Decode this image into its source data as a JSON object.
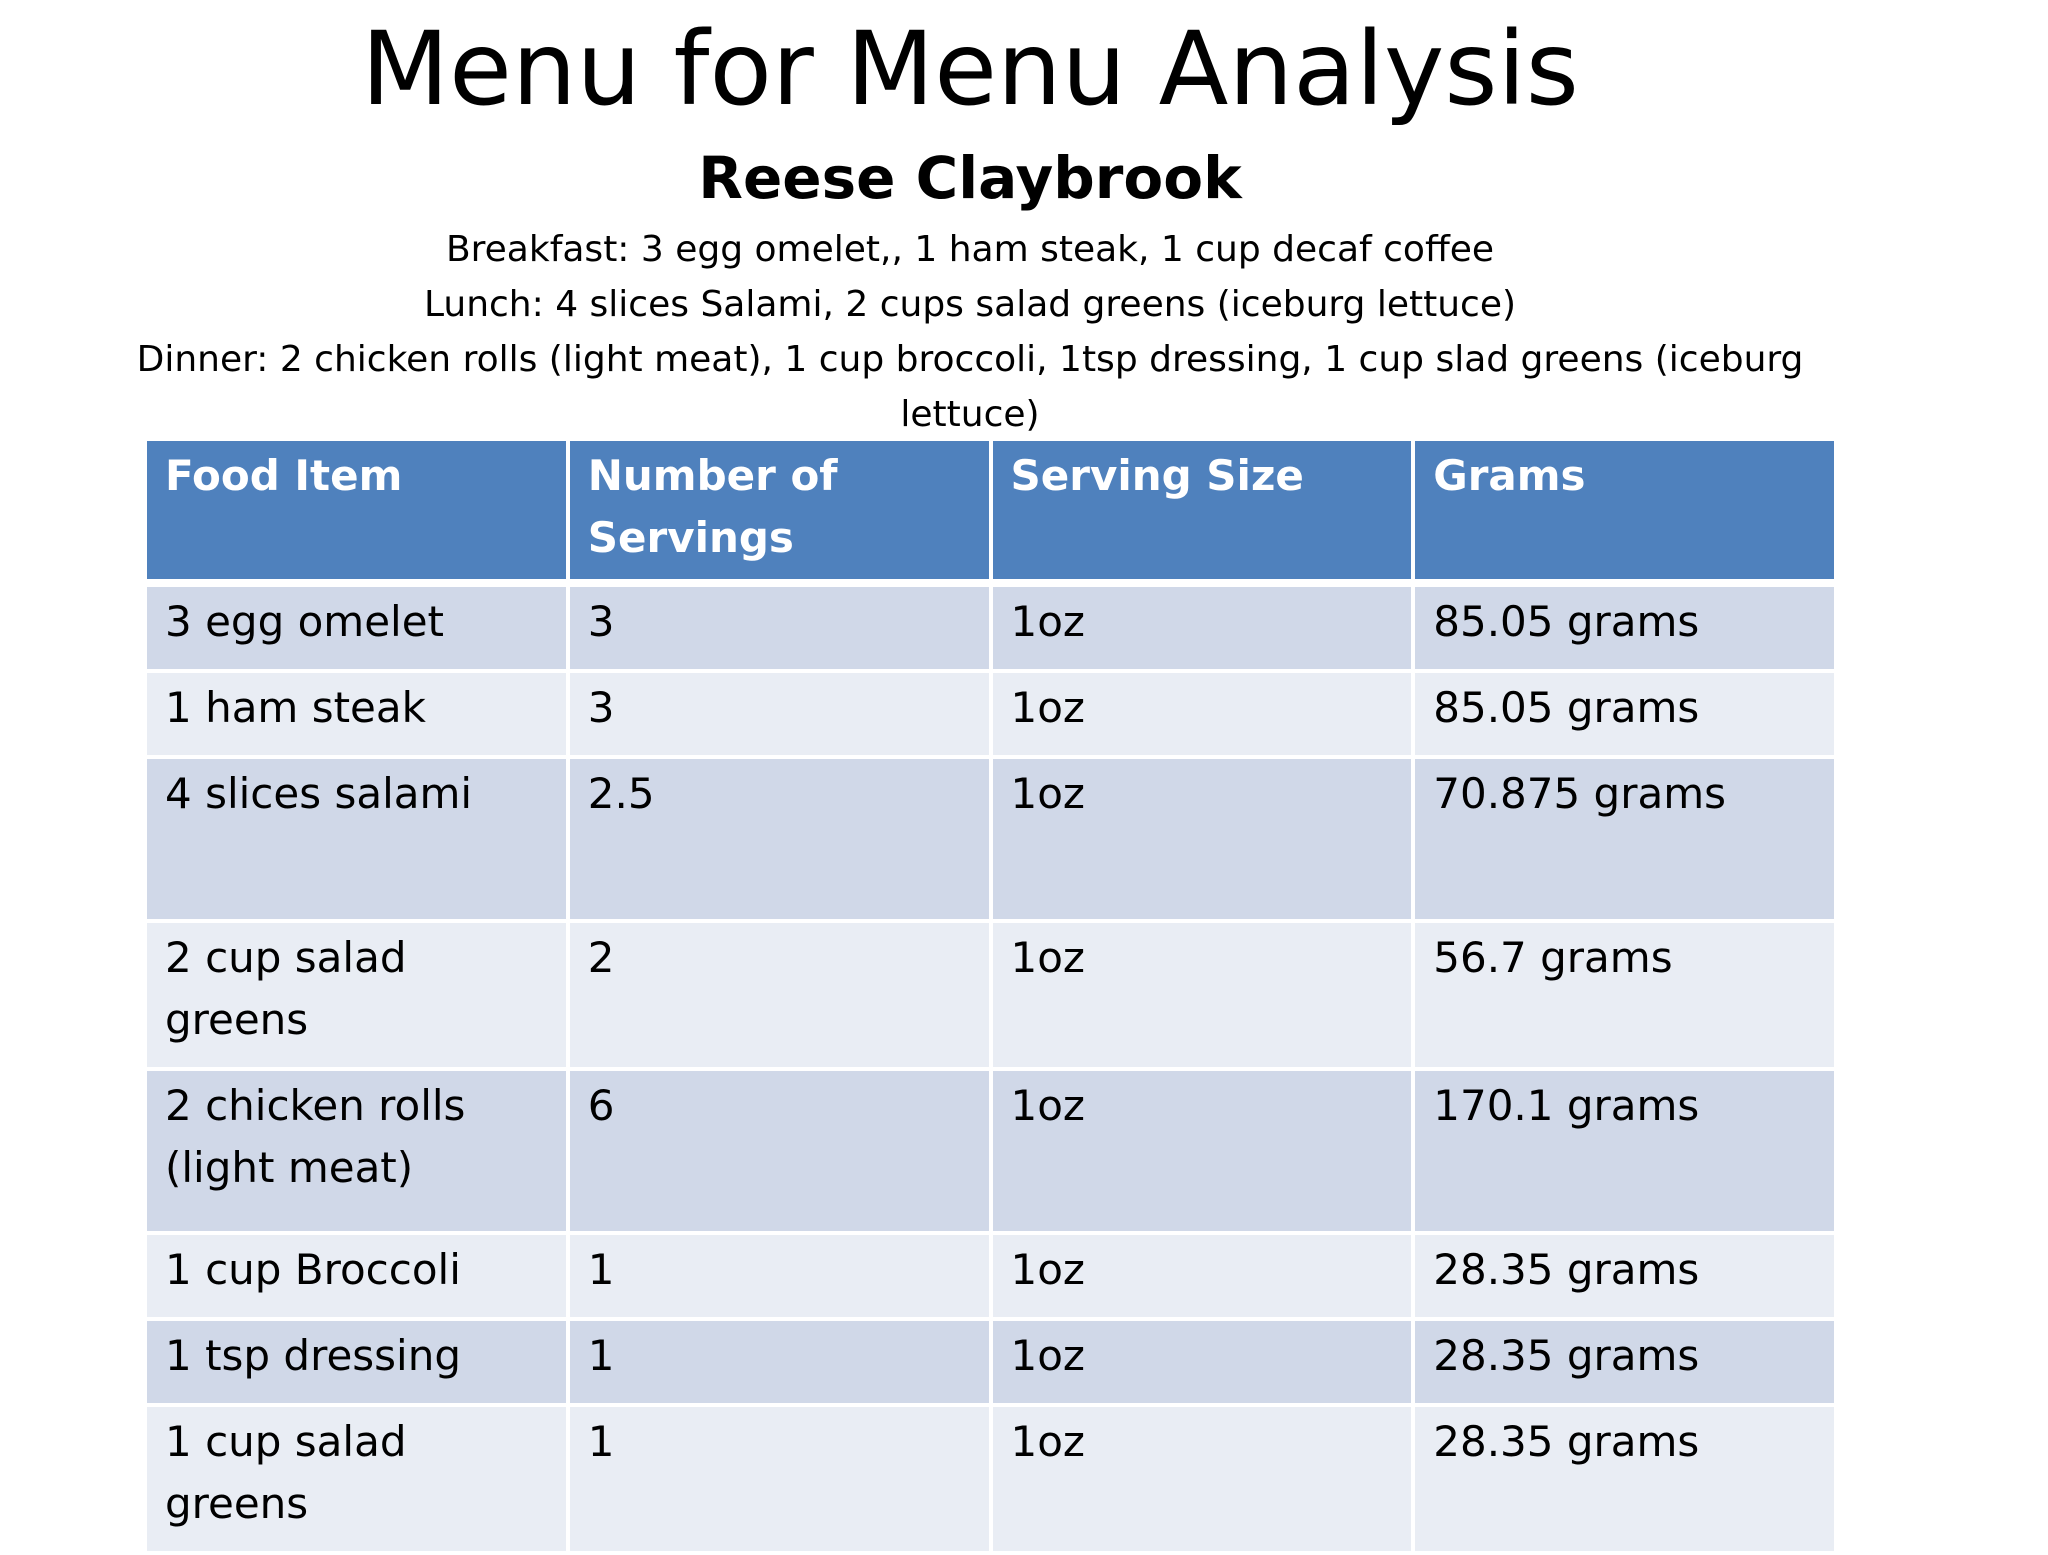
{
  "title": "Menu for Menu Analysis",
  "subtitle": "Reese Claybrook",
  "menu": {
    "breakfast": "Breakfast: 3 egg omelet,, 1 ham steak, 1 cup decaf coffee",
    "lunch": "Lunch: 4 slices Salami, 2 cups salad greens (iceburg lettuce)",
    "dinner": "Dinner: 2 chicken rolls (light meat), 1 cup broccoli, 1tsp dressing, 1 cup slad greens (iceburg lettuce)"
  },
  "table": {
    "headers": [
      "Food Item",
      "Number of Servings",
      "Serving Size",
      "Grams"
    ],
    "rows": [
      {
        "item": "3 egg omelet",
        "servings": "3",
        "size": "1oz",
        "grams": "85.05 grams"
      },
      {
        "item": "1 ham steak",
        "servings": "3",
        "size": "1oz",
        "grams": "85.05 grams"
      },
      {
        "item": "4 slices salami",
        "servings": "2.5",
        "size": "1oz",
        "grams": "70.875 grams"
      },
      {
        "item": "2 cup salad greens",
        "servings": "2",
        "size": "1oz",
        "grams": "56.7 grams"
      },
      {
        "item": "2 chicken rolls (light meat)",
        "servings": "6",
        "size": "1oz",
        "grams": "170.1 grams"
      },
      {
        "item": "1 cup Broccoli",
        "servings": "1",
        "size": "1oz",
        "grams": "28.35 grams"
      },
      {
        "item": "1 tsp dressing",
        "servings": "1",
        "size": "1oz",
        "grams": "28.35 grams"
      },
      {
        "item": "1 cup salad greens",
        "servings": "1",
        "size": "1oz",
        "grams": "28.35 grams"
      }
    ]
  },
  "colors": {
    "header_bg": "#4f81bd",
    "row_odd": "#d0d8e8",
    "row_even": "#e9edf4"
  }
}
